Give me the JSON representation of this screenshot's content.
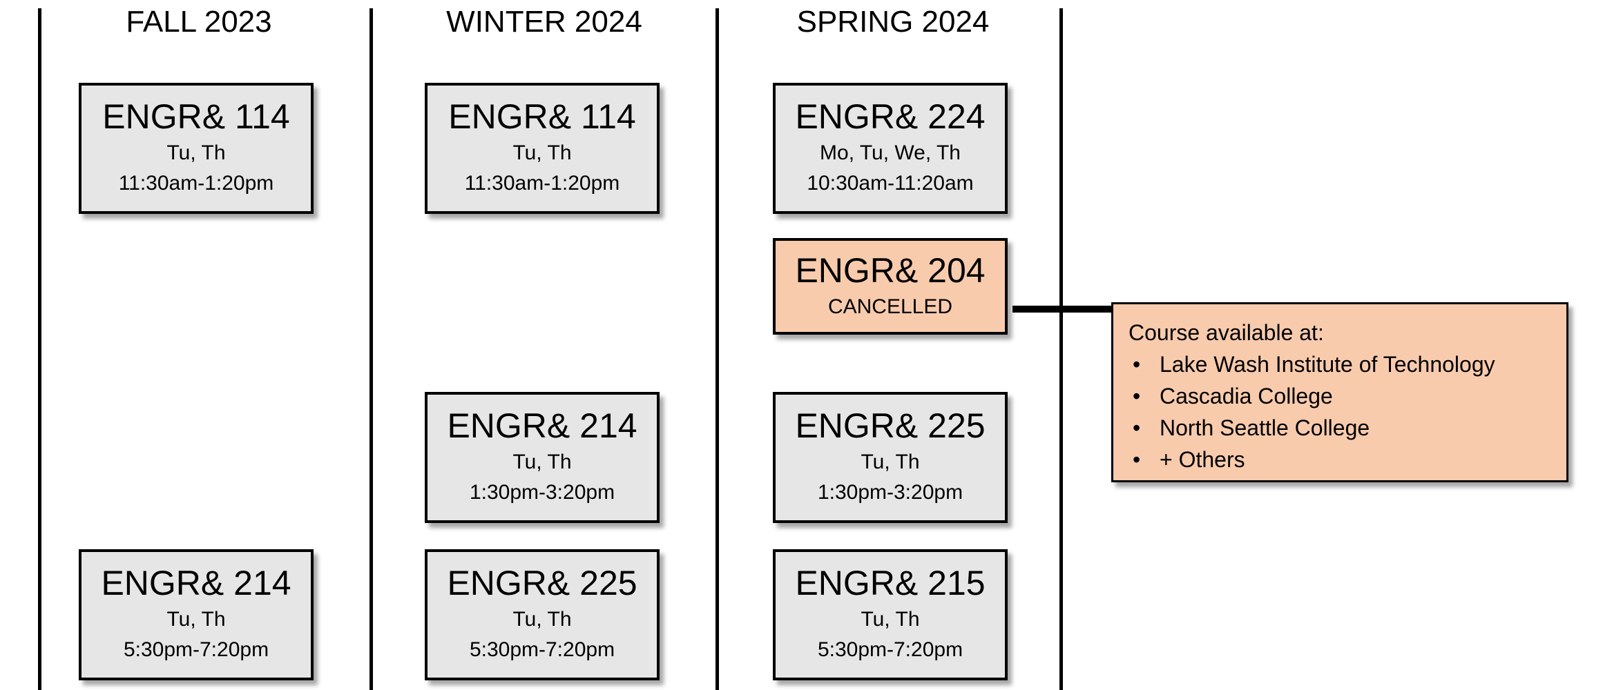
{
  "columns": [
    {
      "title": "FALL 2023"
    },
    {
      "title": "WINTER 2024"
    },
    {
      "title": "SPRING 2024"
    }
  ],
  "courses": [
    {
      "code": "ENGR& 114",
      "days": "Tu, Th",
      "time": "11:30am-1:20pm",
      "term": "FALL 2023"
    },
    {
      "code": "ENGR& 214",
      "days": "Tu, Th",
      "time": "5:30pm-7:20pm",
      "term": "FALL 2023"
    },
    {
      "code": "ENGR& 114",
      "days": "Tu, Th",
      "time": "11:30am-1:20pm",
      "term": "WINTER 2024"
    },
    {
      "code": "ENGR& 214",
      "days": "Tu, Th",
      "time": "1:30pm-3:20pm",
      "term": "WINTER 2024"
    },
    {
      "code": "ENGR& 225",
      "days": "Tu, Th",
      "time": "5:30pm-7:20pm",
      "term": "WINTER 2024"
    },
    {
      "code": "ENGR& 224",
      "days": "Mo, Tu, We, Th",
      "time": "10:30am-11:20am",
      "term": "SPRING 2024"
    },
    {
      "code": "ENGR& 204",
      "status": "CANCELLED",
      "term": "SPRING 2024"
    },
    {
      "code": "ENGR& 225",
      "days": "Tu, Th",
      "time": "1:30pm-3:20pm",
      "term": "SPRING 2024"
    },
    {
      "code": "ENGR& 215",
      "days": "Tu, Th",
      "time": "5:30pm-7:20pm",
      "term": "SPRING 2024"
    }
  ],
  "note": {
    "heading": "Course available at:",
    "items": [
      "Lake Wash Institute of Technology",
      "Cascadia College",
      "North Seattle College",
      "+ Others"
    ]
  },
  "colors": {
    "course_box": "#e7e6e6",
    "cancelled_box": "#f8cbad"
  }
}
